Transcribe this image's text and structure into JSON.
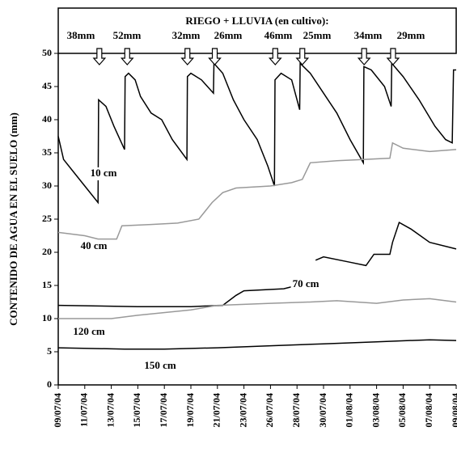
{
  "chart_data": {
    "type": "line",
    "title": "RIEGO + LLUVIA (en cultivo):",
    "ylabel": "CONTENIDO DE AGUA EN EL SUELO (mm)",
    "categories": [
      "09/07/04",
      "11/07/04",
      "13/07/04",
      "15/07/04",
      "17/07/04",
      "19/07/04",
      "21/07/04",
      "23/07/04",
      "26/07/04",
      "28/07/04",
      "30/07/04",
      "01/08/04",
      "03/08/04",
      "05/08/04",
      "07/08/04",
      "09/08/04"
    ],
    "xlim": [
      0,
      15
    ],
    "ylim": [
      0,
      50
    ],
    "yticks": [
      0,
      5,
      10,
      15,
      20,
      25,
      30,
      35,
      40,
      45,
      50
    ],
    "annotations": [
      {
        "text": "38mm",
        "x": 1.55
      },
      {
        "text": "52mm",
        "x": 2.6
      },
      {
        "text": "32mm",
        "x": 4.87
      },
      {
        "text": "26mm",
        "x": 5.9
      },
      {
        "text": "46mm",
        "x": 8.18
      },
      {
        "text": "25mm",
        "x": 9.2
      },
      {
        "text": "34mm",
        "x": 11.53
      },
      {
        "text": "29mm",
        "x": 12.62
      }
    ],
    "series": [
      {
        "name": "10 cm",
        "color": "#000000",
        "x": [
          0,
          0.2,
          0.6,
          1.0,
          1.5,
          1.52,
          1.8,
          2.1,
          2.5,
          2.52,
          2.65,
          2.9,
          3.1,
          3.5,
          3.9,
          4.3,
          4.85,
          4.87,
          5.0,
          5.4,
          5.85,
          5.87,
          6.2,
          6.6,
          7.0,
          7.5,
          7.9,
          8.15,
          8.17,
          8.4,
          8.8,
          9.1,
          9.12,
          9.5,
          10.0,
          10.5,
          11.0,
          11.5,
          11.52,
          11.8,
          12.3,
          12.55,
          12.57,
          13.0,
          13.6,
          14.2,
          14.6,
          14.85,
          14.9,
          15
        ],
        "values": [
          37.5,
          34,
          32,
          30,
          27.5,
          43,
          42,
          39,
          35.5,
          46.5,
          47,
          46,
          43.5,
          41,
          40,
          37,
          34,
          46.5,
          47,
          46,
          44,
          48.5,
          47,
          43,
          40,
          37,
          33,
          30,
          46,
          47,
          46,
          41.5,
          48.5,
          47,
          44,
          41,
          37,
          33.5,
          48,
          47.5,
          45,
          42,
          48.5,
          46.5,
          43,
          39,
          37,
          36.5,
          47.5,
          47.5
        ]
      },
      {
        "name": "40 cm",
        "color": "#999999",
        "x": [
          0,
          1,
          1.5,
          2.2,
          2.4,
          3.5,
          4.5,
          5.3,
          5.8,
          6.2,
          6.7,
          8,
          8.8,
          9.2,
          9.5,
          10.5,
          11.5,
          12.5,
          12.6,
          13,
          14,
          15
        ],
        "values": [
          23,
          22.5,
          22,
          22,
          24,
          24.2,
          24.4,
          25,
          27.5,
          29,
          29.7,
          30,
          30.5,
          31,
          33.5,
          33.8,
          34,
          34.2,
          36.5,
          35.7,
          35.2,
          35.5
        ]
      },
      {
        "name": "70 cm",
        "color": "#000000",
        "x": [
          0,
          3,
          5,
          6.2,
          6.7,
          7,
          8.5,
          9,
          9.3,
          9.5,
          9.7,
          10,
          11,
          11.6,
          11.9,
          12.5,
          12.6,
          12.85,
          13.3,
          14,
          15
        ],
        "values": [
          12,
          11.8,
          11.8,
          12,
          13.5,
          14.2,
          14.5,
          15,
          15.5,
          null,
          18.8,
          19.3,
          18.5,
          18,
          19.7,
          19.7,
          21.5,
          24.5,
          23.5,
          21.5,
          20.5
        ]
      },
      {
        "name": "120 cm",
        "color": "#999999",
        "x": [
          0,
          2,
          3,
          5,
          6,
          8,
          9.5,
          10.5,
          12,
          13,
          14,
          15
        ],
        "values": [
          10,
          10,
          10.5,
          11.3,
          12,
          12.3,
          12.5,
          12.7,
          12.3,
          12.8,
          13,
          12.5
        ]
      },
      {
        "name": "150 cm",
        "color": "#000000",
        "x": [
          0,
          2.5,
          4,
          6,
          8,
          10,
          12,
          14,
          15
        ],
        "values": [
          5.6,
          5.4,
          5.4,
          5.6,
          5.9,
          6.2,
          6.5,
          6.8,
          6.7
        ]
      }
    ]
  }
}
